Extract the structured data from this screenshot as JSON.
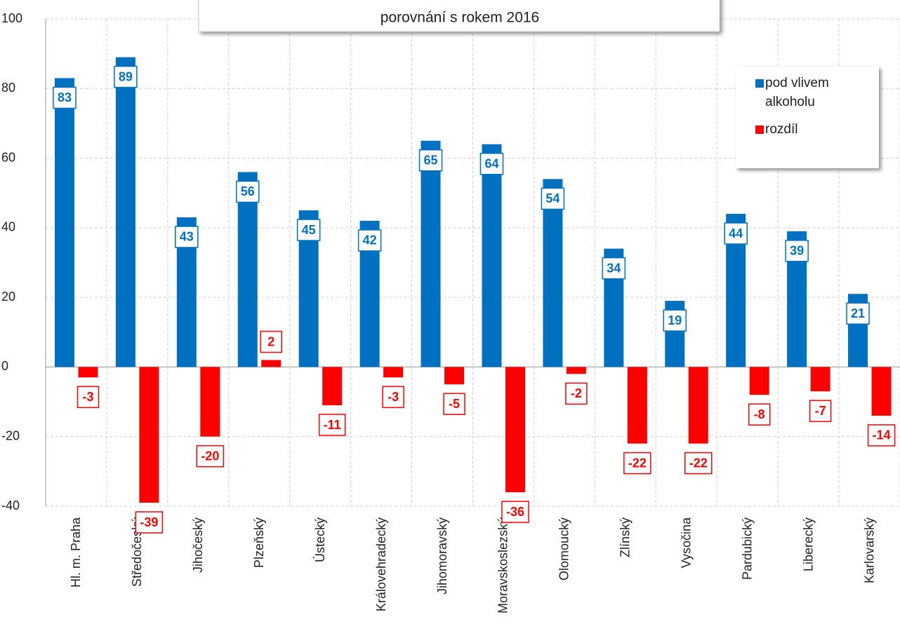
{
  "chart_data": {
    "type": "bar",
    "subtitle": "porovnání s rokem 2016",
    "categories": [
      "Hl. m. Praha",
      "Středočeský",
      "Jihočeský",
      "Plzeňský",
      "Ústecký",
      "Královehradecký",
      "Jihomoravský",
      "Moravskoslezský",
      "Olomoucký",
      "Zlínský",
      "Vysočina",
      "Pardubický",
      "Liberecký",
      "Karlovarský"
    ],
    "series": [
      {
        "name": "pod vlivem alkoholu",
        "color": "#0070c0",
        "values": [
          83,
          89,
          43,
          56,
          45,
          42,
          65,
          64,
          54,
          34,
          19,
          44,
          39,
          21
        ]
      },
      {
        "name": "rozdíl",
        "color": "#ff0000",
        "values": [
          -3,
          -39,
          -20,
          2,
          -11,
          -3,
          -5,
          -36,
          -2,
          -22,
          -22,
          -8,
          -7,
          -14
        ]
      }
    ],
    "ylim": [
      -40,
      100
    ],
    "yticks": [
      -40,
      -20,
      0,
      20,
      40,
      60,
      80,
      100
    ],
    "grid": true,
    "legend": "upper right"
  }
}
